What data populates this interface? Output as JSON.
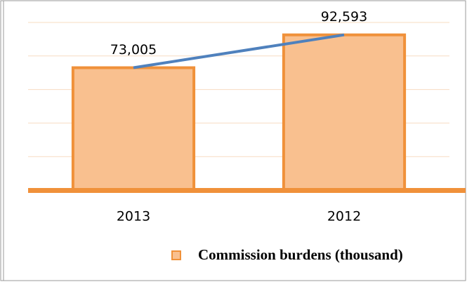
{
  "chart_data": {
    "type": "bar",
    "categories": [
      "2013",
      "2012"
    ],
    "series": [
      {
        "name": "Commission burdens (thousand)",
        "color": "#f9c08f",
        "edge": "#f0913a",
        "values": [
          73005,
          92593
        ],
        "value_labels": [
          "73,005",
          "92,593"
        ]
      }
    ],
    "line_color": "#4f81bd",
    "ylim": [
      0,
      100000
    ],
    "yticks": [
      0,
      20000,
      40000,
      60000,
      80000,
      100000
    ],
    "grid": true
  }
}
